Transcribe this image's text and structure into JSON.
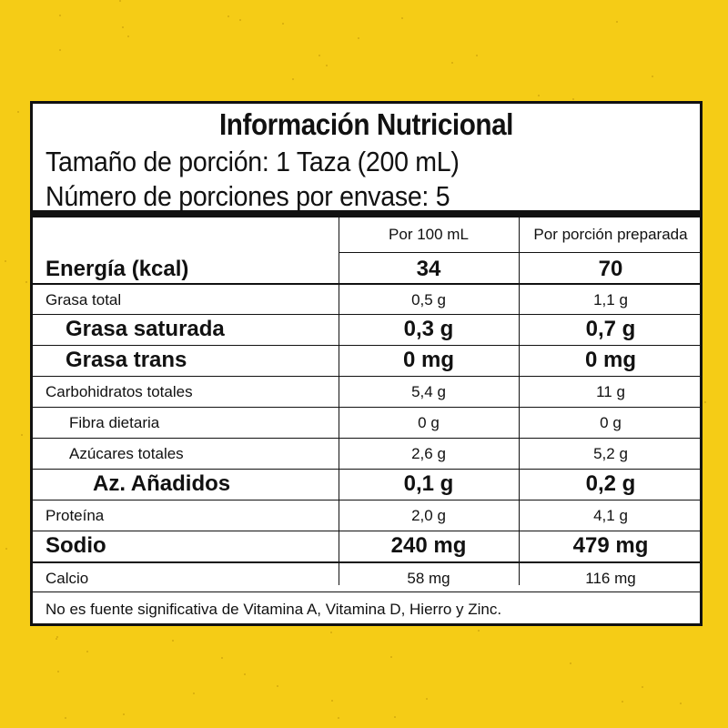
{
  "label": {
    "title": "Información Nutricional",
    "serving_size": "Tamaño de porción: 1 Taza (200 mL)",
    "servings_per_container": "Número de porciones por envase: 5",
    "columns": [
      "Por 100 mL",
      "Por porción preparada"
    ],
    "rows": [
      {
        "name": "Energía (kcal)",
        "per100": "34",
        "perServing": "70"
      },
      {
        "name": "Grasa total",
        "per100": "0,5 g",
        "perServing": "1,1 g"
      },
      {
        "name": "Grasa saturada",
        "per100": "0,3 g",
        "perServing": "0,7 g"
      },
      {
        "name": "Grasa trans",
        "per100": "0 mg",
        "perServing": "0 mg"
      },
      {
        "name": "Carbohidratos totales",
        "per100": "5,4 g",
        "perServing": "11 g"
      },
      {
        "name": "Fibra dietaria",
        "per100": "0 g",
        "perServing": "0 g"
      },
      {
        "name": "Azúcares totales",
        "per100": "2,6 g",
        "perServing": "5,2 g"
      },
      {
        "name": "Az. Añadidos",
        "per100": "0,1 g",
        "perServing": "0,2 g"
      },
      {
        "name": "Proteína",
        "per100": "2,0 g",
        "perServing": "4,1 g"
      },
      {
        "name": "Sodio",
        "per100": "240 mg",
        "perServing": "479 mg"
      },
      {
        "name": "Calcio",
        "per100": "58 mg",
        "perServing": "116 mg"
      }
    ],
    "footnote": "No es fuente significativa de Vitamina A, Vitamina D, Hierro y Zinc."
  },
  "colors": {
    "background": "#f5cc16",
    "panel": "#ffffff",
    "ink": "#111111"
  }
}
